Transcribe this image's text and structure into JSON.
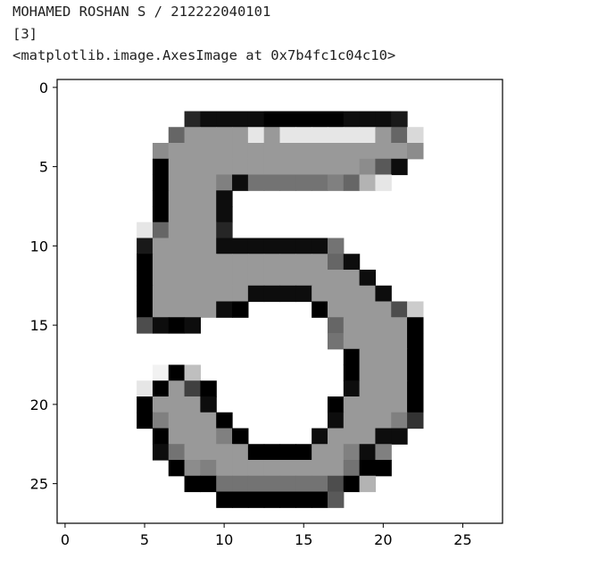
{
  "output": {
    "line1": "MOHAMED ROSHAN S / 212222040101",
    "line2": "[3]",
    "line3": "<matplotlib.image.AxesImage at 0x7b4fc1c04c10>"
  },
  "chart_data": {
    "type": "heatmap",
    "colormap": "gray_r",
    "xlim": [
      -0.5,
      27.5
    ],
    "ylim": [
      27.5,
      -0.5
    ],
    "x_ticks": [
      "0",
      "5",
      "10",
      "15",
      "20",
      "25"
    ],
    "y_ticks": [
      "0",
      "5",
      "10",
      "15",
      "20",
      "25"
    ],
    "rows": [
      [
        [
          8,
          0.85
        ],
        [
          9,
          0.95
        ],
        [
          10,
          0.95
        ],
        [
          11,
          0.95
        ],
        [
          12,
          0.95
        ],
        [
          13,
          1
        ],
        [
          14,
          1
        ],
        [
          15,
          1
        ],
        [
          16,
          1
        ],
        [
          17,
          1
        ],
        [
          18,
          0.95
        ],
        [
          19,
          0.95
        ],
        [
          20,
          0.95
        ],
        [
          21,
          0.9
        ]
      ],
      [
        [
          7,
          0.6
        ],
        [
          8,
          0.4
        ],
        [
          9,
          0.4
        ],
        [
          10,
          0.4
        ],
        [
          11,
          0.4
        ],
        [
          12,
          0.1
        ],
        [
          13,
          0.4
        ],
        [
          14,
          0.1
        ],
        [
          15,
          0.1
        ],
        [
          16,
          0.1
        ],
        [
          17,
          0.1
        ],
        [
          18,
          0.1
        ],
        [
          19,
          0.1
        ],
        [
          20,
          0.4
        ],
        [
          21,
          0.6
        ],
        [
          22,
          0.15
        ]
      ],
      [
        [
          6,
          0.45
        ],
        [
          7,
          0.4
        ],
        [
          8,
          0.4
        ],
        [
          9,
          0.4
        ],
        [
          10,
          0.4
        ],
        [
          11,
          0.4
        ],
        [
          12,
          0.4
        ],
        [
          13,
          0.4
        ],
        [
          14,
          0.4
        ],
        [
          15,
          0.4
        ],
        [
          16,
          0.4
        ],
        [
          17,
          0.4
        ],
        [
          18,
          0.4
        ],
        [
          19,
          0.4
        ],
        [
          20,
          0.4
        ],
        [
          21,
          0.4
        ],
        [
          22,
          0.45
        ]
      ],
      [
        [
          6,
          1
        ],
        [
          7,
          0.4
        ],
        [
          8,
          0.4
        ],
        [
          9,
          0.4
        ],
        [
          10,
          0.4
        ],
        [
          11,
          0.4
        ],
        [
          12,
          0.4
        ],
        [
          13,
          0.4
        ],
        [
          14,
          0.4
        ],
        [
          15,
          0.4
        ],
        [
          16,
          0.4
        ],
        [
          17,
          0.4
        ],
        [
          18,
          0.4
        ],
        [
          19,
          0.45
        ],
        [
          20,
          0.65
        ],
        [
          21,
          0.95
        ]
      ],
      [
        [
          6,
          1
        ],
        [
          7,
          0.4
        ],
        [
          8,
          0.4
        ],
        [
          9,
          0.4
        ],
        [
          10,
          0.5
        ],
        [
          11,
          0.95
        ],
        [
          12,
          0.55
        ],
        [
          13,
          0.55
        ],
        [
          14,
          0.55
        ],
        [
          15,
          0.55
        ],
        [
          16,
          0.55
        ],
        [
          17,
          0.5
        ],
        [
          18,
          0.6
        ],
        [
          19,
          0.3
        ],
        [
          20,
          0.1
        ]
      ],
      [
        [
          6,
          1
        ],
        [
          7,
          0.4
        ],
        [
          8,
          0.4
        ],
        [
          9,
          0.4
        ],
        [
          10,
          0.95
        ]
      ],
      [
        [
          6,
          1
        ],
        [
          7,
          0.4
        ],
        [
          8,
          0.4
        ],
        [
          9,
          0.4
        ],
        [
          10,
          0.95
        ]
      ],
      [
        [
          5,
          0.1
        ],
        [
          6,
          0.6
        ],
        [
          7,
          0.4
        ],
        [
          8,
          0.4
        ],
        [
          9,
          0.4
        ],
        [
          10,
          0.85
        ]
      ],
      [
        [
          5,
          0.9
        ],
        [
          6,
          0.4
        ],
        [
          7,
          0.4
        ],
        [
          8,
          0.4
        ],
        [
          9,
          0.4
        ],
        [
          10,
          0.95
        ],
        [
          11,
          0.95
        ],
        [
          12,
          0.95
        ],
        [
          13,
          0.95
        ],
        [
          14,
          0.95
        ],
        [
          15,
          0.95
        ],
        [
          16,
          0.95
        ],
        [
          17,
          0.55
        ]
      ],
      [
        [
          5,
          1
        ],
        [
          6,
          0.4
        ],
        [
          7,
          0.4
        ],
        [
          8,
          0.4
        ],
        [
          9,
          0.4
        ],
        [
          10,
          0.4
        ],
        [
          11,
          0.4
        ],
        [
          12,
          0.4
        ],
        [
          13,
          0.4
        ],
        [
          14,
          0.4
        ],
        [
          15,
          0.4
        ],
        [
          16,
          0.4
        ],
        [
          17,
          0.6
        ],
        [
          18,
          0.95
        ]
      ],
      [
        [
          5,
          1
        ],
        [
          6,
          0.4
        ],
        [
          7,
          0.4
        ],
        [
          8,
          0.4
        ],
        [
          9,
          0.4
        ],
        [
          10,
          0.4
        ],
        [
          11,
          0.4
        ],
        [
          12,
          0.4
        ],
        [
          13,
          0.4
        ],
        [
          14,
          0.4
        ],
        [
          15,
          0.4
        ],
        [
          16,
          0.4
        ],
        [
          17,
          0.4
        ],
        [
          18,
          0.4
        ],
        [
          19,
          0.95
        ]
      ],
      [
        [
          5,
          1
        ],
        [
          6,
          0.4
        ],
        [
          7,
          0.4
        ],
        [
          8,
          0.4
        ],
        [
          9,
          0.4
        ],
        [
          10,
          0.4
        ],
        [
          11,
          0.4
        ],
        [
          12,
          0.95
        ],
        [
          13,
          0.95
        ],
        [
          14,
          0.95
        ],
        [
          15,
          0.95
        ],
        [
          16,
          0.4
        ],
        [
          17,
          0.4
        ],
        [
          18,
          0.4
        ],
        [
          19,
          0.4
        ],
        [
          20,
          0.95
        ]
      ],
      [
        [
          5,
          1
        ],
        [
          6,
          0.4
        ],
        [
          7,
          0.4
        ],
        [
          8,
          0.4
        ],
        [
          9,
          0.4
        ],
        [
          10,
          0.95
        ],
        [
          11,
          1
        ],
        [
          16,
          1
        ],
        [
          17,
          0.4
        ],
        [
          18,
          0.4
        ],
        [
          19,
          0.4
        ],
        [
          20,
          0.4
        ],
        [
          21,
          0.7
        ],
        [
          22,
          0.2
        ]
      ],
      [
        [
          5,
          0.7
        ],
        [
          6,
          0.95
        ],
        [
          7,
          1
        ],
        [
          8,
          0.95
        ],
        [
          17,
          0.6
        ],
        [
          18,
          0.4
        ],
        [
          19,
          0.4
        ],
        [
          20,
          0.4
        ],
        [
          21,
          0.4
        ],
        [
          22,
          1
        ]
      ],
      [
        [
          17,
          0.55
        ],
        [
          18,
          0.4
        ],
        [
          19,
          0.4
        ],
        [
          20,
          0.4
        ],
        [
          21,
          0.4
        ],
        [
          22,
          1
        ]
      ],
      [
        [
          18,
          1
        ],
        [
          19,
          0.4
        ],
        [
          20,
          0.4
        ],
        [
          21,
          0.4
        ],
        [
          22,
          1
        ]
      ],
      [
        [
          6,
          0.05
        ],
        [
          7,
          1
        ],
        [
          8,
          0.25
        ],
        [
          18,
          1
        ],
        [
          19,
          0.4
        ],
        [
          20,
          0.4
        ],
        [
          21,
          0.4
        ],
        [
          22,
          1
        ]
      ],
      [
        [
          5,
          0.1
        ],
        [
          6,
          1
        ],
        [
          7,
          0.4
        ],
        [
          8,
          0.75
        ],
        [
          9,
          1
        ],
        [
          18,
          0.95
        ],
        [
          19,
          0.4
        ],
        [
          20,
          0.4
        ],
        [
          21,
          0.4
        ],
        [
          22,
          1
        ]
      ],
      [
        [
          5,
          1
        ],
        [
          6,
          0.4
        ],
        [
          7,
          0.4
        ],
        [
          8,
          0.4
        ],
        [
          9,
          0.95
        ],
        [
          17,
          1
        ],
        [
          18,
          0.4
        ],
        [
          19,
          0.4
        ],
        [
          20,
          0.4
        ],
        [
          21,
          0.4
        ],
        [
          22,
          1
        ]
      ],
      [
        [
          5,
          1
        ],
        [
          6,
          0.5
        ],
        [
          7,
          0.4
        ],
        [
          8,
          0.4
        ],
        [
          9,
          0.4
        ],
        [
          10,
          1
        ],
        [
          17,
          0.95
        ],
        [
          18,
          0.4
        ],
        [
          19,
          0.4
        ],
        [
          20,
          0.4
        ],
        [
          21,
          0.5
        ],
        [
          22,
          0.8
        ]
      ],
      [
        [
          6,
          1
        ],
        [
          7,
          0.4
        ],
        [
          8,
          0.4
        ],
        [
          9,
          0.4
        ],
        [
          10,
          0.5
        ],
        [
          11,
          1
        ],
        [
          16,
          0.95
        ],
        [
          17,
          0.4
        ],
        [
          18,
          0.4
        ],
        [
          19,
          0.4
        ],
        [
          20,
          0.95
        ],
        [
          21,
          0.95
        ]
      ],
      [
        [
          6,
          0.95
        ],
        [
          7,
          0.55
        ],
        [
          8,
          0.4
        ],
        [
          9,
          0.4
        ],
        [
          10,
          0.4
        ],
        [
          11,
          0.4
        ],
        [
          12,
          1
        ],
        [
          13,
          1
        ],
        [
          14,
          1
        ],
        [
          15,
          1
        ],
        [
          16,
          0.4
        ],
        [
          17,
          0.4
        ],
        [
          18,
          0.5
        ],
        [
          19,
          0.95
        ],
        [
          20,
          0.5
        ]
      ],
      [
        [
          7,
          1
        ],
        [
          8,
          0.45
        ],
        [
          9,
          0.5
        ],
        [
          10,
          0.4
        ],
        [
          11,
          0.4
        ],
        [
          12,
          0.4
        ],
        [
          13,
          0.4
        ],
        [
          14,
          0.4
        ],
        [
          15,
          0.4
        ],
        [
          16,
          0.4
        ],
        [
          17,
          0.4
        ],
        [
          18,
          0.55
        ],
        [
          19,
          1
        ],
        [
          20,
          1
        ]
      ],
      [
        [
          8,
          1
        ],
        [
          9,
          1
        ],
        [
          10,
          0.55
        ],
        [
          11,
          0.55
        ],
        [
          12,
          0.55
        ],
        [
          13,
          0.55
        ],
        [
          14,
          0.55
        ],
        [
          15,
          0.55
        ],
        [
          16,
          0.55
        ],
        [
          17,
          0.7
        ],
        [
          18,
          1
        ],
        [
          19,
          0.3
        ]
      ],
      [
        [
          10,
          1
        ],
        [
          11,
          1
        ],
        [
          12,
          1
        ],
        [
          13,
          1
        ],
        [
          14,
          1
        ],
        [
          15,
          1
        ],
        [
          16,
          1
        ],
        [
          17,
          0.65
        ]
      ]
    ],
    "row_start": 2
  }
}
